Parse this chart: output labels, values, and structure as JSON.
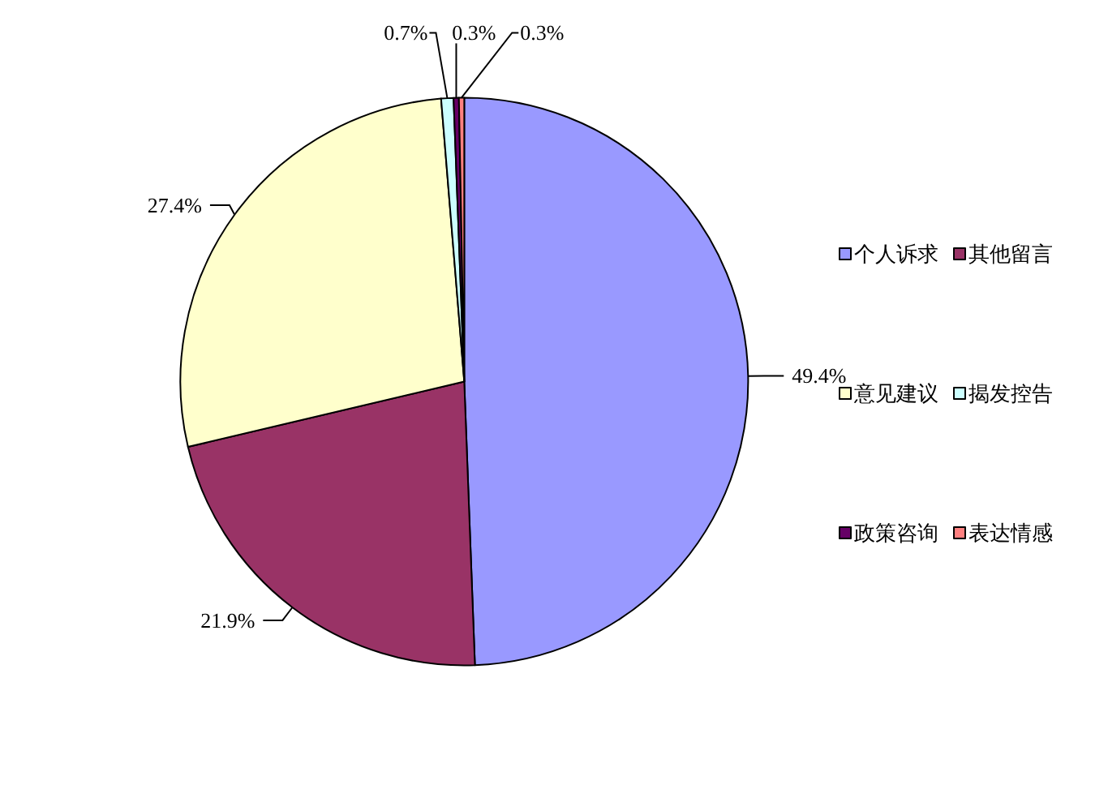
{
  "chart_data": {
    "type": "pie",
    "categories": [
      "个人诉求",
      "其他留言",
      "意见建议",
      "揭发控告",
      "政策咨询",
      "表达情感"
    ],
    "values": [
      49.4,
      21.9,
      27.4,
      0.7,
      0.3,
      0.3
    ],
    "colors": [
      "#9999ff",
      "#993366",
      "#ffffcc",
      "#ccffff",
      "#660066",
      "#ff8080"
    ],
    "value_labels": [
      "49.4%",
      "21.9%",
      "27.4%",
      "0.7%",
      "0.3%",
      "0.3%"
    ],
    "legend": "right"
  }
}
